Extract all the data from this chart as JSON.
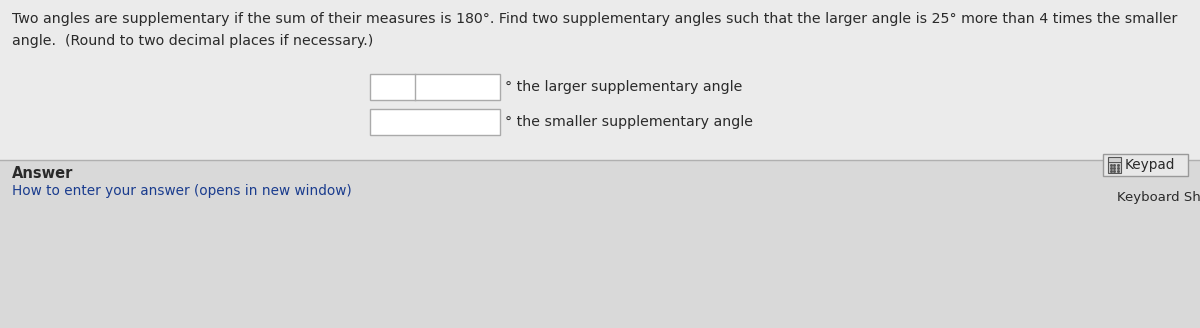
{
  "top_bg": "#ebebeb",
  "bottom_bg": "#d9d9d9",
  "divider_color": "#b0b0b0",
  "problem_line1": "Two angles are supplementary if the sum of their measures is 180°. Find two supplementary angles such that the larger angle is 25° more than 4 times the smaller",
  "problem_line2": "angle.  (Round to two decimal places if necessary.)",
  "answer_label": "Answer",
  "how_to_label": "How to enter your answer (opens in new window)",
  "keypad_label": "Keypad",
  "keyboard_label": "Keyboard Shortcuts",
  "larger_label": "° the larger supplementary angle",
  "smaller_label": "° the smaller supplementary angle",
  "text_color": "#2a2a2a",
  "link_color": "#1a3c8e",
  "input_bg": "#ffffff",
  "input_border": "#aaaaaa",
  "keypad_bg": "#e8e8e8",
  "keypad_border": "#999999",
  "keypad_icon_color": "#555555"
}
